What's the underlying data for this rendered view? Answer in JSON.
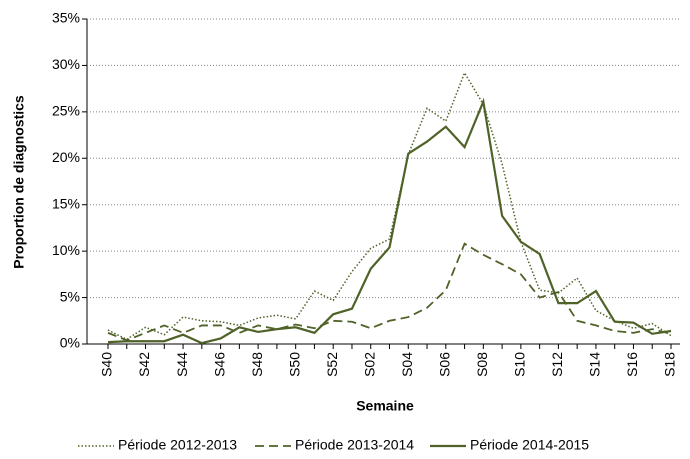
{
  "chart_data": {
    "type": "line",
    "x_label": "Semaine",
    "y_label": "Proportion de diagnostics",
    "categories": [
      "S40",
      null,
      "S42",
      null,
      "S44",
      null,
      "S46",
      null,
      "S48",
      null,
      "S50",
      null,
      "S52",
      null,
      "S02",
      null,
      "S04",
      null,
      "S06",
      null,
      "S08",
      null,
      "S10",
      null,
      "S12",
      null,
      "S14",
      null,
      "S16",
      null,
      "S18"
    ],
    "series": [
      {
        "name": "Période 2012-2013",
        "color": "#4f6228",
        "dash": "dotted",
        "values": [
          1.5,
          0.5,
          1.8,
          1.0,
          2.9,
          2.5,
          2.4,
          2.0,
          2.8,
          3.1,
          2.7,
          5.7,
          4.7,
          7.8,
          10.3,
          11.3,
          20.4,
          25.4,
          24.0,
          29.2,
          25.8,
          19.4,
          11.0,
          5.8,
          5.5,
          7.1,
          3.6,
          2.5,
          1.7,
          2.2,
          0.9
        ]
      },
      {
        "name": "Période 2013-2014",
        "color": "#4f6228",
        "dash": "dashed",
        "values": [
          1.2,
          0.4,
          1.2,
          2.0,
          1.2,
          2.0,
          2.0,
          1.2,
          2.0,
          1.6,
          2.1,
          1.7,
          2.5,
          2.4,
          1.7,
          2.5,
          2.9,
          3.9,
          5.8,
          10.8,
          9.6,
          8.6,
          7.5,
          5.0,
          5.6,
          2.5,
          2.0,
          1.4,
          1.2,
          1.6,
          1.1
        ]
      },
      {
        "name": "Période 2014-2015",
        "color": "#4f6228",
        "dash": "solid",
        "values": [
          0.2,
          0.3,
          0.3,
          0.3,
          1.0,
          0.1,
          0.6,
          1.8,
          1.3,
          1.6,
          1.8,
          1.2,
          3.2,
          3.8,
          8.1,
          10.4,
          20.5,
          21.8,
          23.4,
          21.2,
          26.1,
          13.8,
          11.0,
          9.7,
          4.4,
          4.4,
          5.7,
          2.4,
          2.3,
          1.1,
          1.4
        ]
      }
    ],
    "ylim": [
      0,
      35
    ],
    "yticks": [
      {
        "value": 0,
        "label": "0%"
      },
      {
        "value": 5,
        "label": "5%"
      },
      {
        "value": 10,
        "label": "10%"
      },
      {
        "value": 15,
        "label": "15%"
      },
      {
        "value": 20,
        "label": "20%"
      },
      {
        "value": 25,
        "label": "25%"
      },
      {
        "value": 30,
        "label": "30%"
      },
      {
        "value": 35,
        "label": "35%"
      }
    ],
    "grid": true,
    "legend": "bottom"
  }
}
